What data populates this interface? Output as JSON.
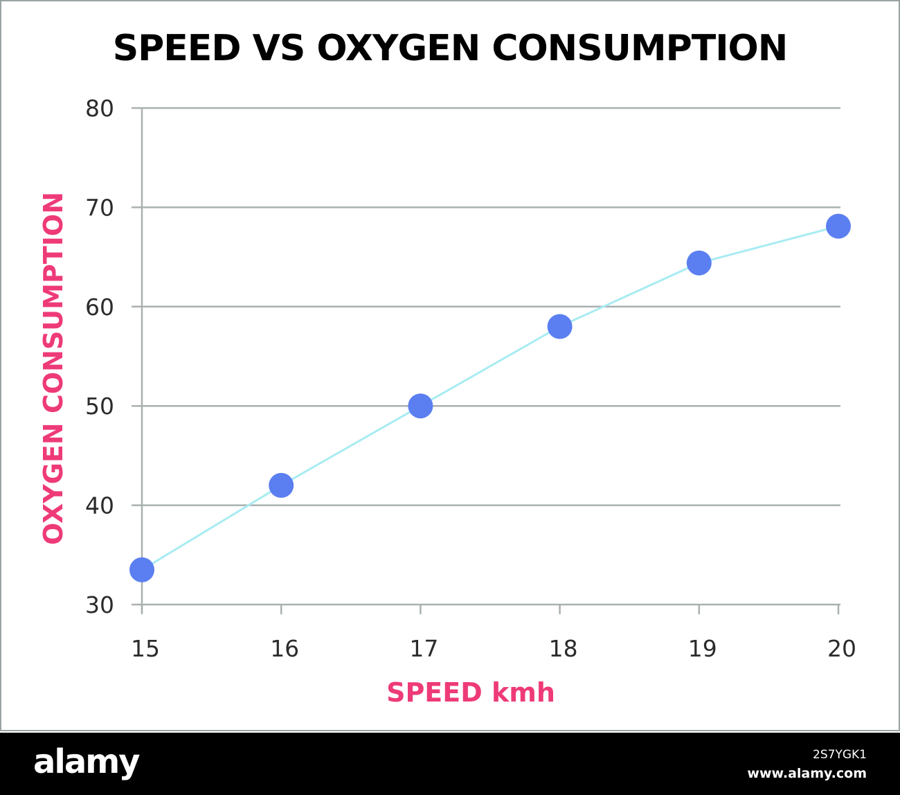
{
  "chart_data": {
    "type": "line",
    "title": "SPEED VS OXYGEN CONSUMPTION",
    "xlabel": "SPEED kmh",
    "ylabel": "OXYGEN CONSUMPTION",
    "x": [
      15,
      16,
      17,
      18,
      19,
      20
    ],
    "series": [
      {
        "values": [
          33.5,
          42,
          50,
          58,
          64.4,
          68.1
        ]
      }
    ],
    "xticks": [
      "15",
      "16",
      "17",
      "18",
      "19",
      "20"
    ],
    "yticks": [
      "30",
      "40",
      "50",
      "60",
      "70",
      "80"
    ],
    "xlim": [
      15,
      20
    ],
    "ylim": [
      30,
      80
    ],
    "grid": "horizontal",
    "colors": {
      "line": "#a8ecf2",
      "marker": "#5b7ff0",
      "grid": "#a9b0b0",
      "axis_label": "#ee3a78",
      "title": "#000000"
    }
  },
  "watermark": {
    "brand": "alamy",
    "image_id": "2S7YGK1",
    "site": "www.alamy.com"
  }
}
